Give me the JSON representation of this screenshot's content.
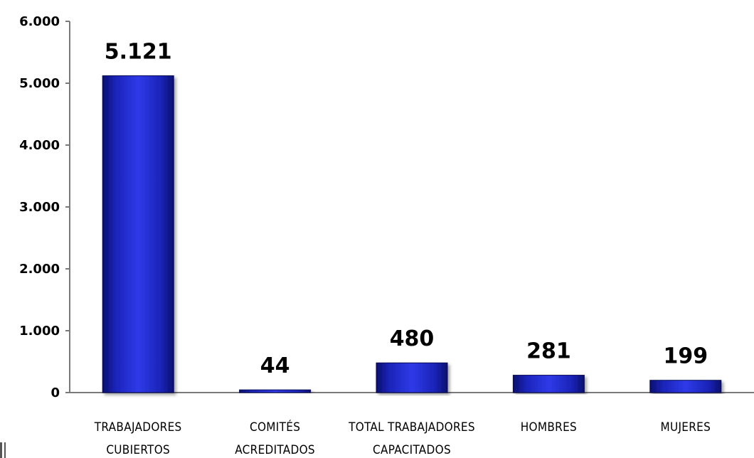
{
  "chart_data": {
    "type": "bar",
    "categories": [
      [
        "TRABAJADORES",
        "CUBIERTOS"
      ],
      [
        "COMITÉS",
        "ACREDITADOS"
      ],
      [
        "TOTAL TRABAJADORES",
        "CAPACITADOS"
      ],
      [
        "HOMBRES"
      ],
      [
        "MUJERES"
      ]
    ],
    "values": [
      5121,
      44,
      480,
      281,
      199
    ],
    "value_labels": [
      "5.121",
      "44",
      "480",
      "281",
      "199"
    ],
    "ylim": [
      0,
      6000
    ],
    "yticks": [
      0,
      1000,
      2000,
      3000,
      4000,
      5000,
      6000
    ],
    "ytick_labels": [
      "0",
      "1.000",
      "2.000",
      "3.000",
      "4.000",
      "5.000",
      "6.000"
    ],
    "grid": false,
    "title": "",
    "xlabel": "",
    "ylabel": "",
    "colors": {
      "bar_dark": "#0a0f6e",
      "bar_mid": "#1e2ad0",
      "bar_light": "#2f3ae8",
      "axis": "#7a7a7a"
    }
  }
}
